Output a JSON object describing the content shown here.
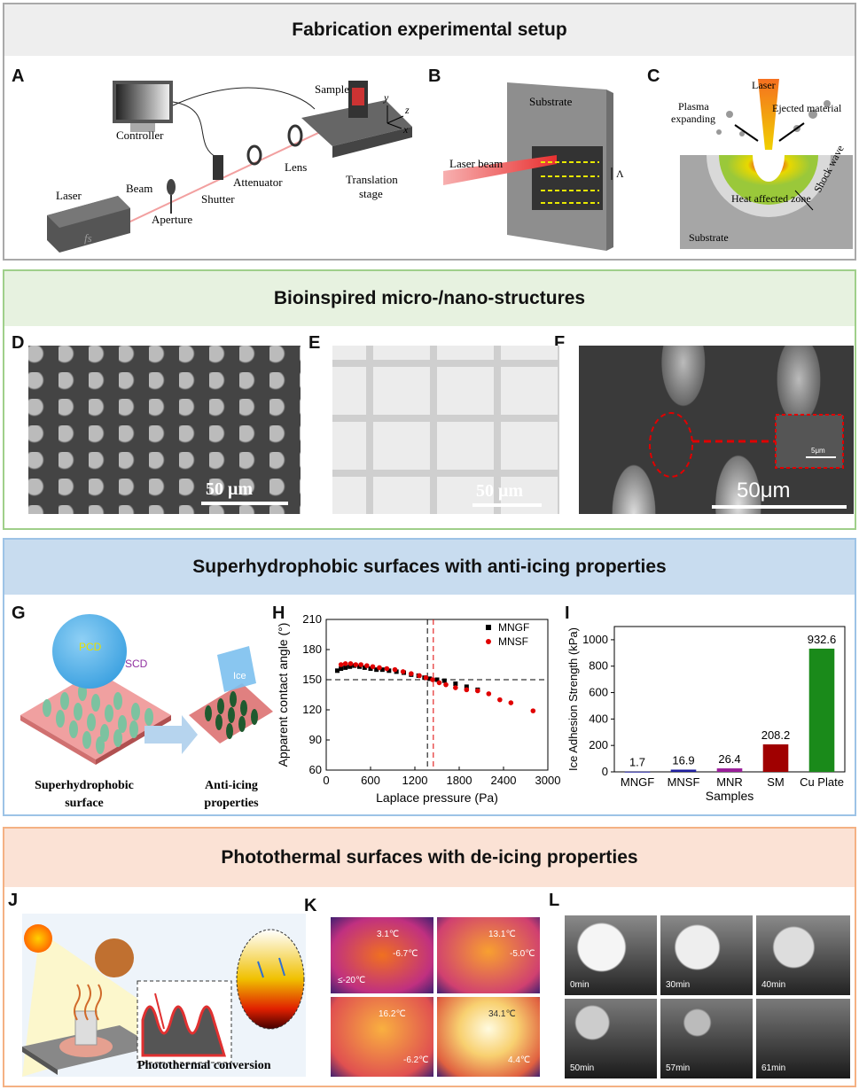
{
  "sections": {
    "fab": {
      "title": "Fabrication experimental setup",
      "color": "#a9a9a9",
      "bg": "#eeeeee"
    },
    "bio": {
      "title": "Bioinspired micro-/nano-structures",
      "color": "#9fcf8a",
      "bg": "#e7f2e0"
    },
    "sh": {
      "title": "Superhydrophobic surfaces with anti-icing properties",
      "color": "#9dc3e6",
      "bg": "#c8dcef"
    },
    "pt": {
      "title": "Photothermal surfaces with de-icing properties",
      "color": "#f4b183",
      "bg": "#fbe2d5"
    }
  },
  "panels": {
    "A": "A",
    "B": "B",
    "C": "C",
    "D": "D",
    "E": "E",
    "F": "F",
    "G": "G",
    "H": "H",
    "I": "I",
    "J": "J",
    "K": "K",
    "L": "L"
  },
  "panelA": {
    "controller": "Controller",
    "laser": "Laser",
    "fs": "fs",
    "beam": "Beam",
    "aperture": "Aperture",
    "shutter": "Shutter",
    "attenuator": "Attenuator",
    "lens": "Lens",
    "sample": "Sample",
    "translation": "Translation",
    "stage": "stage",
    "y": "y",
    "z": "z",
    "x": "x"
  },
  "panelB": {
    "substrate": "Substrate",
    "laser_beam": "Laser beam",
    "lambda": "Λ"
  },
  "panelC": {
    "laser": "Laser",
    "plasma1": "Plasma",
    "plasma2": "expanding",
    "ejected": "Ejected material",
    "haz": "Heat affected zone",
    "shock": "Shock wave",
    "substrate": "Substrate"
  },
  "panelD": {
    "scale": "50 μm"
  },
  "panelE": {
    "scale": "50 μm"
  },
  "panelF": {
    "scale": "50μm",
    "inset_scale": "5μm"
  },
  "panelG": {
    "pcd": "PCD",
    "scd": "SCD",
    "ice": "Ice",
    "left1": "Superhydrophobic",
    "left2": "surface",
    "right1": "Anti-icing",
    "right2": "properties"
  },
  "chart_data": [
    {
      "type": "scatter",
      "panel": "H",
      "xlabel": "Laplace pressure (Pa)",
      "ylabel": "Apparent contact angle (°)",
      "xlim": [
        0,
        3000
      ],
      "ylim": [
        60,
        210
      ],
      "xticks": [
        0,
        600,
        1200,
        1800,
        2400,
        3000
      ],
      "yticks": [
        60,
        90,
        120,
        150,
        180,
        210
      ],
      "hline": 150,
      "vlines": [
        {
          "x": 1370,
          "color": "#000000"
        },
        {
          "x": 1450,
          "color": "#e00000"
        }
      ],
      "legend_position": "top-right",
      "series": [
        {
          "name": "MNGF",
          "color": "#000000",
          "marker": "square",
          "x": [
            150,
            200,
            260,
            320,
            380,
            450,
            520,
            600,
            680,
            760,
            850,
            950,
            1050,
            1150,
            1250,
            1330,
            1400,
            1500,
            1600,
            1750,
            1900,
            2050
          ],
          "y": [
            159,
            161,
            162,
            163,
            164,
            163,
            162,
            161,
            160,
            160,
            159,
            158,
            157,
            155,
            154,
            152,
            151,
            150,
            149,
            146,
            143,
            140
          ]
        },
        {
          "name": "MNSF",
          "color": "#e00000",
          "marker": "circle",
          "x": [
            200,
            260,
            330,
            400,
            470,
            550,
            630,
            720,
            820,
            930,
            1040,
            1150,
            1260,
            1350,
            1440,
            1530,
            1620,
            1750,
            1900,
            2050,
            2200,
            2350,
            2500,
            2800
          ],
          "y": [
            165,
            166,
            166,
            165,
            165,
            164,
            163,
            162,
            161,
            160,
            158,
            156,
            154,
            152,
            150,
            147,
            145,
            142,
            140,
            139,
            136,
            130,
            127,
            119
          ]
        }
      ]
    },
    {
      "type": "bar",
      "panel": "I",
      "xlabel": "Samples",
      "ylabel": "Ice Adhesion Strength (kPa)",
      "ylim": [
        0,
        1100
      ],
      "yticks": [
        0,
        200,
        400,
        600,
        800,
        1000
      ],
      "categories": [
        "MNGF",
        "MNSF",
        "MNR",
        "SM",
        "Cu Plate"
      ],
      "values": [
        1.7,
        16.9,
        26.4,
        208.2,
        932.6
      ],
      "labels": [
        "1.7",
        "16.9",
        "26.4",
        "208.2",
        "932.6"
      ],
      "colors": [
        "#1f1f9f",
        "#1f1f9f",
        "#9a1f9a",
        "#a00000",
        "#1a8a1a"
      ]
    }
  ],
  "panelJ": {
    "caption": "Photothermal conversion"
  },
  "panelK": {
    "t1a": "3.1℃",
    "t1b": "-6.7℃",
    "t1c": "≤-20℃",
    "t2a": "13.1℃",
    "t2b": "-5.0℃",
    "t3a": "16.2℃",
    "t3b": "-6.2℃",
    "t4a": "34.1℃",
    "t4b": "4.4℃"
  },
  "panelL": {
    "times": [
      "0min",
      "30min",
      "40min",
      "50min",
      "57min",
      "61min"
    ]
  }
}
